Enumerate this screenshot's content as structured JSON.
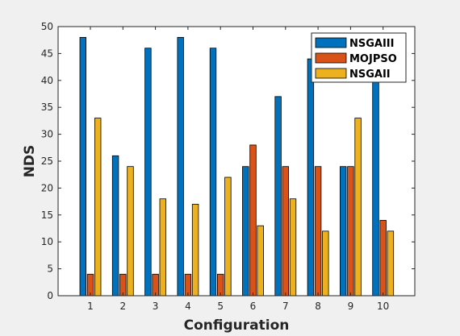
{
  "chart_data": {
    "type": "bar",
    "xlabel": "Configuration",
    "ylabel": "NDS",
    "ylim": [
      0,
      50
    ],
    "yticks": [
      0,
      5,
      10,
      15,
      20,
      25,
      30,
      35,
      40,
      45,
      50
    ],
    "categories": [
      "1",
      "2",
      "3",
      "4",
      "5",
      "6",
      "7",
      "8",
      "9",
      "10"
    ],
    "series": [
      {
        "name": "NSGAIII",
        "color": "#0072bd",
        "values": [
          48,
          26,
          46,
          48,
          46,
          24,
          37,
          44,
          24,
          42
        ]
      },
      {
        "name": "MOJPSO",
        "color": "#d95319",
        "values": [
          4,
          4,
          4,
          4,
          4,
          28,
          24,
          24,
          24,
          14
        ]
      },
      {
        "name": "NSGAII",
        "color": "#edb120",
        "values": [
          33,
          24,
          18,
          17,
          22,
          13,
          18,
          12,
          33,
          12
        ]
      }
    ],
    "legend_position": "top-right",
    "grid": false
  }
}
